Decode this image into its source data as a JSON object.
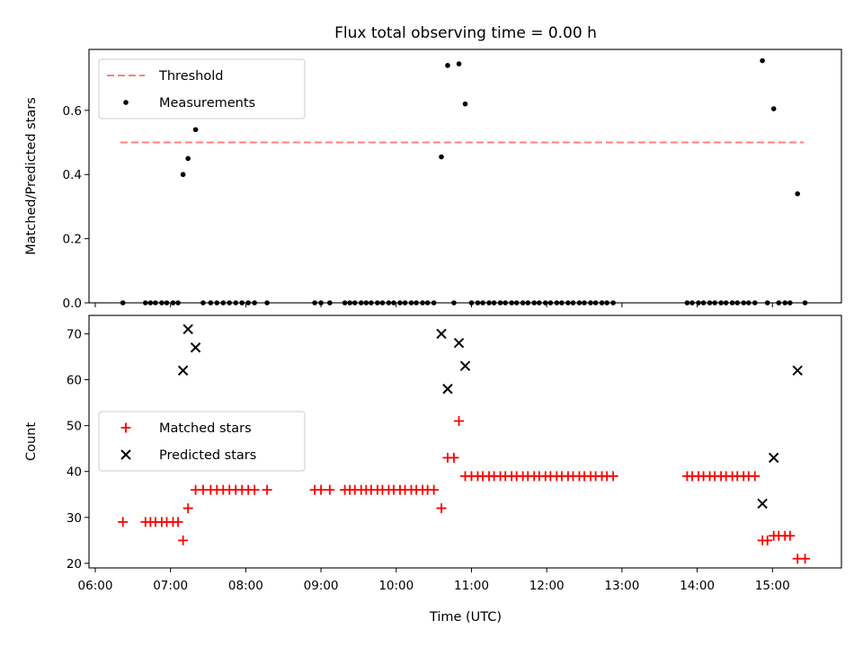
{
  "chart_data": [
    {
      "type": "scatter",
      "title": "Flux total observing time = 0.00 h",
      "xlabel": "",
      "ylabel": "Matched/Predicted stars",
      "ylim": [
        0,
        0.79
      ],
      "xlim": [
        "05:55",
        "15:55"
      ],
      "yticks": [
        "0.0",
        "0.2",
        "0.4",
        "0.6"
      ],
      "grid": false,
      "legend_position": "top-left",
      "threshold": {
        "name": "Threshold",
        "value": 0.5,
        "x_start": "06:20",
        "x_end": "15:25",
        "color": "#ff7f7f",
        "style": "dashed"
      },
      "series": [
        {
          "name": "Measurements",
          "color": "#000000",
          "marker": "dot",
          "points": [
            [
              "06:22",
              0
            ],
            [
              "06:40",
              0
            ],
            [
              "06:44",
              0
            ],
            [
              "06:48",
              0
            ],
            [
              "06:53",
              0
            ],
            [
              "06:57",
              0
            ],
            [
              "07:02",
              0
            ],
            [
              "07:06",
              0
            ],
            [
              "07:10",
              0.4
            ],
            [
              "07:14",
              0.45
            ],
            [
              "07:20",
              0.54
            ],
            [
              "07:26",
              0
            ],
            [
              "07:32",
              0
            ],
            [
              "07:37",
              0
            ],
            [
              "07:42",
              0
            ],
            [
              "07:47",
              0
            ],
            [
              "07:52",
              0
            ],
            [
              "07:57",
              0
            ],
            [
              "08:02",
              0
            ],
            [
              "08:07",
              0
            ],
            [
              "08:17",
              0
            ],
            [
              "08:55",
              0
            ],
            [
              "09:00",
              0
            ],
            [
              "09:07",
              0
            ],
            [
              "09:19",
              0
            ],
            [
              "09:23",
              0
            ],
            [
              "09:27",
              0
            ],
            [
              "09:32",
              0
            ],
            [
              "09:36",
              0
            ],
            [
              "09:40",
              0
            ],
            [
              "09:45",
              0
            ],
            [
              "09:49",
              0
            ],
            [
              "09:54",
              0
            ],
            [
              "09:58",
              0
            ],
            [
              "10:03",
              0
            ],
            [
              "10:07",
              0
            ],
            [
              "10:12",
              0
            ],
            [
              "10:16",
              0
            ],
            [
              "10:21",
              0
            ],
            [
              "10:25",
              0
            ],
            [
              "10:30",
              0
            ],
            [
              "10:36",
              0.455
            ],
            [
              "10:41",
              0.74
            ],
            [
              "10:46",
              0
            ],
            [
              "10:50",
              0.745
            ],
            [
              "10:55",
              0.62
            ],
            [
              "11:00",
              0
            ],
            [
              "11:05",
              0
            ],
            [
              "11:09",
              0
            ],
            [
              "11:14",
              0
            ],
            [
              "11:18",
              0
            ],
            [
              "11:23",
              0
            ],
            [
              "11:27",
              0
            ],
            [
              "11:32",
              0
            ],
            [
              "11:36",
              0
            ],
            [
              "11:41",
              0
            ],
            [
              "11:45",
              0
            ],
            [
              "11:50",
              0
            ],
            [
              "11:54",
              0
            ],
            [
              "11:59",
              0
            ],
            [
              "12:03",
              0
            ],
            [
              "12:08",
              0
            ],
            [
              "12:12",
              0
            ],
            [
              "12:17",
              0
            ],
            [
              "12:21",
              0
            ],
            [
              "12:26",
              0
            ],
            [
              "12:30",
              0
            ],
            [
              "12:35",
              0
            ],
            [
              "12:39",
              0
            ],
            [
              "12:44",
              0
            ],
            [
              "12:48",
              0
            ],
            [
              "12:53",
              0
            ],
            [
              "13:52",
              0
            ],
            [
              "13:56",
              0
            ],
            [
              "14:01",
              0
            ],
            [
              "14:05",
              0
            ],
            [
              "14:10",
              0
            ],
            [
              "14:14",
              0
            ],
            [
              "14:19",
              0
            ],
            [
              "14:23",
              0
            ],
            [
              "14:28",
              0
            ],
            [
              "14:32",
              0
            ],
            [
              "14:37",
              0
            ],
            [
              "14:41",
              0
            ],
            [
              "14:46",
              0
            ],
            [
              "14:52",
              0.755
            ],
            [
              "14:56",
              0
            ],
            [
              "15:01",
              0.605
            ],
            [
              "15:05",
              0
            ],
            [
              "15:10",
              0
            ],
            [
              "15:14",
              0
            ],
            [
              "15:20",
              0.34
            ],
            [
              "15:26",
              0
            ]
          ]
        }
      ]
    },
    {
      "type": "scatter",
      "title": "",
      "xlabel": "Time (UTC)",
      "ylabel": "Count",
      "ylim": [
        19,
        74
      ],
      "xlim": [
        "05:55",
        "15:55"
      ],
      "yticks": [
        "20",
        "30",
        "40",
        "50",
        "60",
        "70"
      ],
      "xticks": [
        "06:00",
        "07:00",
        "08:00",
        "09:00",
        "10:00",
        "11:00",
        "12:00",
        "13:00",
        "14:00",
        "15:00"
      ],
      "grid": false,
      "legend_position": "center-left",
      "series": [
        {
          "name": "Matched stars",
          "color": "#ff0000",
          "marker": "plus",
          "points": [
            [
              "06:22",
              29
            ],
            [
              "06:40",
              29
            ],
            [
              "06:44",
              29
            ],
            [
              "06:48",
              29
            ],
            [
              "06:53",
              29
            ],
            [
              "06:57",
              29
            ],
            [
              "07:02",
              29
            ],
            [
              "07:06",
              29
            ],
            [
              "07:10",
              25
            ],
            [
              "07:14",
              32
            ],
            [
              "07:20",
              36
            ],
            [
              "07:26",
              36
            ],
            [
              "07:32",
              36
            ],
            [
              "07:37",
              36
            ],
            [
              "07:42",
              36
            ],
            [
              "07:47",
              36
            ],
            [
              "07:52",
              36
            ],
            [
              "07:57",
              36
            ],
            [
              "08:02",
              36
            ],
            [
              "08:07",
              36
            ],
            [
              "08:17",
              36
            ],
            [
              "08:55",
              36
            ],
            [
              "09:00",
              36
            ],
            [
              "09:07",
              36
            ],
            [
              "09:19",
              36
            ],
            [
              "09:23",
              36
            ],
            [
              "09:27",
              36
            ],
            [
              "09:32",
              36
            ],
            [
              "09:36",
              36
            ],
            [
              "09:40",
              36
            ],
            [
              "09:45",
              36
            ],
            [
              "09:49",
              36
            ],
            [
              "09:54",
              36
            ],
            [
              "09:58",
              36
            ],
            [
              "10:03",
              36
            ],
            [
              "10:07",
              36
            ],
            [
              "10:12",
              36
            ],
            [
              "10:16",
              36
            ],
            [
              "10:21",
              36
            ],
            [
              "10:25",
              36
            ],
            [
              "10:30",
              36
            ],
            [
              "10:36",
              32
            ],
            [
              "10:41",
              43
            ],
            [
              "10:46",
              43
            ],
            [
              "10:50",
              51
            ],
            [
              "10:55",
              39
            ],
            [
              "11:00",
              39
            ],
            [
              "11:05",
              39
            ],
            [
              "11:09",
              39
            ],
            [
              "11:14",
              39
            ],
            [
              "11:18",
              39
            ],
            [
              "11:23",
              39
            ],
            [
              "11:27",
              39
            ],
            [
              "11:32",
              39
            ],
            [
              "11:36",
              39
            ],
            [
              "11:41",
              39
            ],
            [
              "11:45",
              39
            ],
            [
              "11:50",
              39
            ],
            [
              "11:54",
              39
            ],
            [
              "11:59",
              39
            ],
            [
              "12:03",
              39
            ],
            [
              "12:08",
              39
            ],
            [
              "12:12",
              39
            ],
            [
              "12:17",
              39
            ],
            [
              "12:21",
              39
            ],
            [
              "12:26",
              39
            ],
            [
              "12:30",
              39
            ],
            [
              "12:35",
              39
            ],
            [
              "12:39",
              39
            ],
            [
              "12:44",
              39
            ],
            [
              "12:48",
              39
            ],
            [
              "12:53",
              39
            ],
            [
              "13:52",
              39
            ],
            [
              "13:56",
              39
            ],
            [
              "14:01",
              39
            ],
            [
              "14:05",
              39
            ],
            [
              "14:10",
              39
            ],
            [
              "14:14",
              39
            ],
            [
              "14:19",
              39
            ],
            [
              "14:23",
              39
            ],
            [
              "14:28",
              39
            ],
            [
              "14:32",
              39
            ],
            [
              "14:37",
              39
            ],
            [
              "14:41",
              39
            ],
            [
              "14:46",
              39
            ],
            [
              "14:52",
              25
            ],
            [
              "14:56",
              25
            ],
            [
              "15:01",
              26
            ],
            [
              "15:05",
              26
            ],
            [
              "15:10",
              26
            ],
            [
              "15:14",
              26
            ],
            [
              "15:20",
              21
            ],
            [
              "15:26",
              21
            ]
          ]
        },
        {
          "name": "Predicted stars",
          "color": "#000000",
          "marker": "x",
          "points": [
            [
              "07:10",
              62
            ],
            [
              "07:14",
              71
            ],
            [
              "07:20",
              67
            ],
            [
              "10:36",
              70
            ],
            [
              "10:41",
              58
            ],
            [
              "10:50",
              68
            ],
            [
              "10:55",
              63
            ],
            [
              "14:52",
              33
            ],
            [
              "15:01",
              43
            ],
            [
              "15:20",
              62
            ]
          ]
        }
      ]
    }
  ]
}
